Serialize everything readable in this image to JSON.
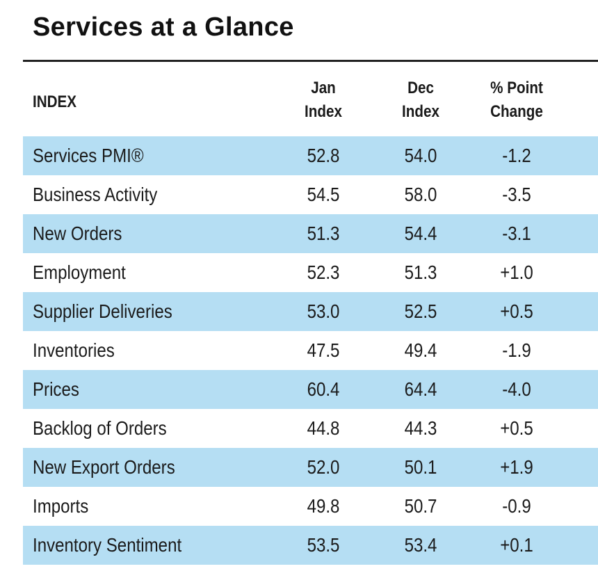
{
  "title": "Services at a Glance",
  "columns": {
    "index": "INDEX",
    "jan_line1": "Jan",
    "jan_line2": "Index",
    "dec_line1": "Dec",
    "dec_line2": "Index",
    "change_line1": "% Point",
    "change_line2": "Change"
  },
  "rows": [
    {
      "name": "Services PMI®",
      "jan": "52.8",
      "dec": "54.0",
      "change": "-1.2"
    },
    {
      "name": "Business Activity",
      "jan": "54.5",
      "dec": "58.0",
      "change": "-3.5"
    },
    {
      "name": "New Orders",
      "jan": "51.3",
      "dec": "54.4",
      "change": "-3.1"
    },
    {
      "name": "Employment",
      "jan": "52.3",
      "dec": "51.3",
      "change": "+1.0"
    },
    {
      "name": "Supplier Deliveries",
      "jan": "53.0",
      "dec": "52.5",
      "change": "+0.5"
    },
    {
      "name": "Inventories",
      "jan": "47.5",
      "dec": "49.4",
      "change": "-1.9"
    },
    {
      "name": "Prices",
      "jan": "60.4",
      "dec": "64.4",
      "change": "-4.0"
    },
    {
      "name": "Backlog of Orders",
      "jan": "44.8",
      "dec": "44.3",
      "change": "+0.5"
    },
    {
      "name": "New Export Orders",
      "jan": "52.0",
      "dec": "50.1",
      "change": "+1.9"
    },
    {
      "name": "Imports",
      "jan": "49.8",
      "dec": "50.7",
      "change": "-0.9"
    },
    {
      "name": "Inventory Sentiment",
      "jan": "53.5",
      "dec": "53.4",
      "change": "+0.1"
    }
  ],
  "colors": {
    "row_shade": "#b5def3",
    "rule": "#222222"
  }
}
